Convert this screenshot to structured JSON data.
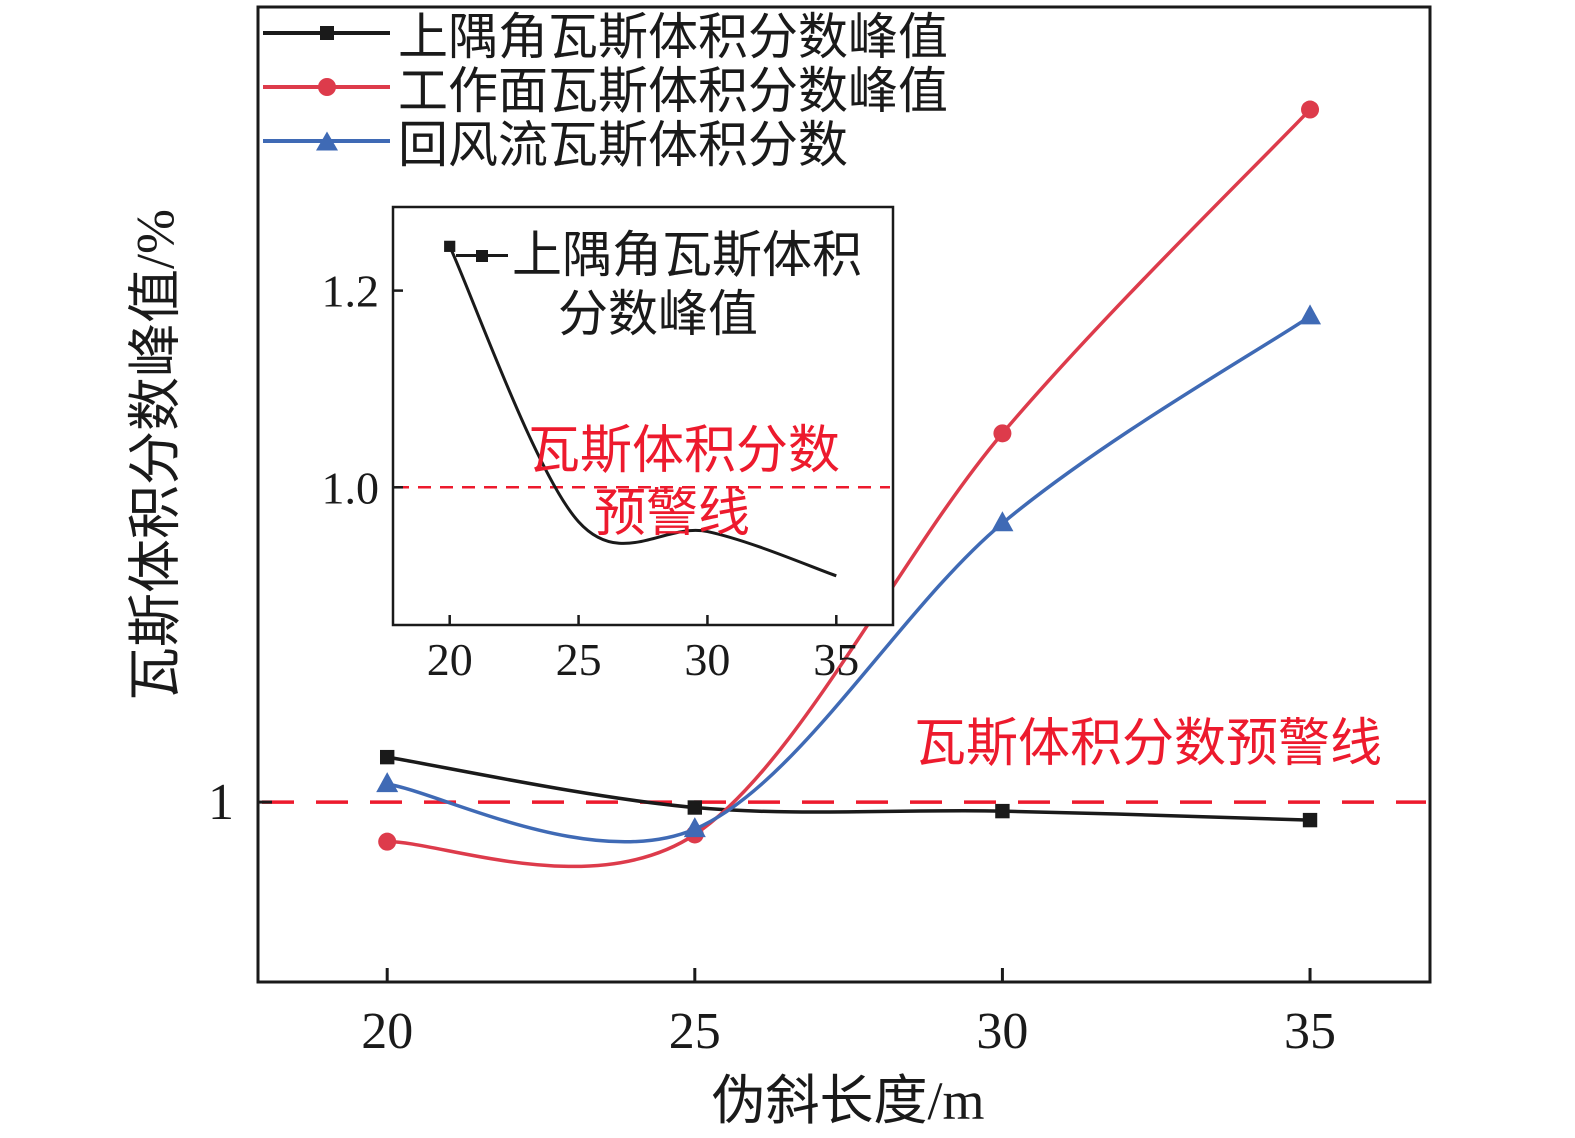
{
  "chart_data": {
    "type": "line",
    "title": "",
    "xlabel": "伪斜长度/m",
    "ylabel": "瓦斯体积分数峰值/%",
    "x": [
      20,
      25,
      30,
      35
    ],
    "xticks": [
      20,
      25,
      30,
      35
    ],
    "xlim": [
      17.9,
      36.95
    ],
    "ylim": [
      0,
      5.42
    ],
    "yticks": [
      {
        "value": 1,
        "label": "1"
      }
    ],
    "grid": false,
    "legend_position": "upper-left-inside",
    "warning_line": {
      "y": 1,
      "style": "dashed",
      "color": "#ed1a2d",
      "label": "瓦斯体积分数预警线"
    },
    "series": [
      {
        "name": "上隅角瓦斯体积分数峰值",
        "color": "#1a1a1a",
        "marker": "square",
        "values": [
          1.25,
          0.97,
          0.95,
          0.9
        ]
      },
      {
        "name": "工作面瓦斯体积分数峰值",
        "color": "#dd3b4b",
        "marker": "circle",
        "values": [
          0.78,
          0.82,
          3.05,
          4.85
        ]
      },
      {
        "name": "回风流瓦斯体积分数",
        "color": "#3f6ab5",
        "marker": "triangle",
        "values": [
          1.1,
          0.85,
          2.55,
          3.7
        ]
      }
    ],
    "inset": {
      "legend_name_line1": "上隅角瓦斯体积",
      "legend_name_line2": "分数峰值",
      "series_color": "#1a1a1a",
      "marker": "square",
      "x": [
        20,
        25,
        30,
        35
      ],
      "values": [
        1.245,
        0.965,
        0.955,
        0.91
      ],
      "xticks": [
        20,
        25,
        30,
        35
      ],
      "yticks": [
        {
          "value": 1.0,
          "label": "1.0"
        },
        {
          "value": 1.2,
          "label": "1.2"
        }
      ],
      "xlim": [
        17.8,
        37.2
      ],
      "ylim": [
        0.86,
        1.285
      ],
      "warning_line": {
        "y": 1.0,
        "style": "dashed",
        "color": "#ed1a2d",
        "label_line1": "瓦斯体积分数",
        "label_line2": "预警线"
      }
    }
  }
}
